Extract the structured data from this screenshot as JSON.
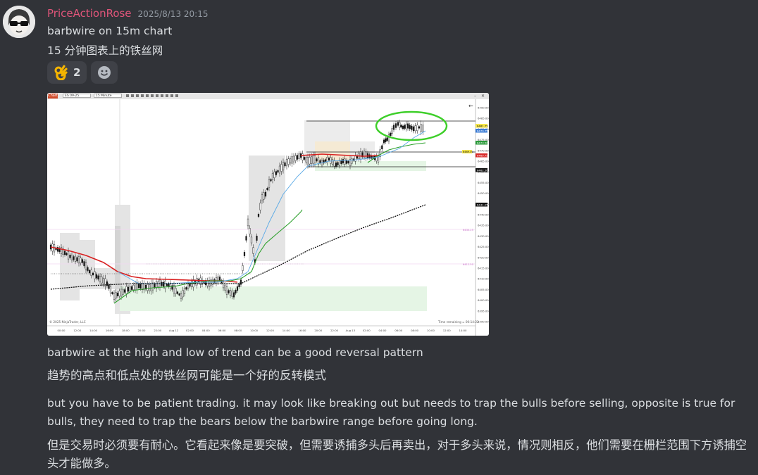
{
  "message": {
    "username": "PriceActionRose",
    "timestamp": "2025/8/13 20:15",
    "line1": "barbwire on 15m chart",
    "line2": "15 分钟图表上的铁丝网",
    "reactions": [
      {
        "emoji": "ok-hand-icon",
        "count": "2"
      }
    ],
    "after_image_1": "barbwire at the high and low of trend can be a good reversal pattern",
    "after_image_2": "趋势的高点和低点处的铁丝网可能是一个好的反转模式",
    "paragraph_en": "but you have to be patient trading. it may look like breaking out but needs to trap the bulls before selling, opposite is true for bulls, they need to trap the bears below the barbwire range before going long.",
    "paragraph_zh": "但是交易时必须要有耐心。它看起来像是要突破，但需要诱捕多头后再卖出，对于多头来说，情况则相反，他们需要在栅栏范围下方诱捕空头才能做多。"
  },
  "chart": {
    "tab_label": "Chart",
    "instrument": "ES 09-25",
    "interval": "15 Minute",
    "copyright": "© 2025 NinjaTrader, LLC",
    "time_remaining": "Time remaining = 00:14:22",
    "x_ticks": [
      "00:00",
      "12:00",
      "14:00",
      "16:00",
      "18:00",
      "20:00",
      "22:00",
      "Aug 12",
      "02:00",
      "04:00",
      "06:00",
      "08:00",
      "10:00",
      "12:00",
      "14:00",
      "16:00",
      "20:00",
      "22:00",
      "Aug 13",
      "02:00",
      "04:00",
      "06:00",
      "08:00",
      "10:00",
      "12:00",
      "14:00"
    ],
    "y_ticks": [
      "6490.00",
      "6485.00",
      "6480.00",
      "6475.00",
      "6470.00",
      "6465.00",
      "6460.00",
      "6455.00",
      "6450.00",
      "6445.00",
      "6440.00",
      "6435.00",
      "6430.00",
      "6425.00",
      "6420.00",
      "6415.00",
      "6410.00",
      "6405.00",
      "6400.00",
      "6395.00",
      "6390.00"
    ],
    "price_labels": [
      {
        "text": "6481.75",
        "color": "#f5e64a"
      },
      {
        "text": "6479.75",
        "color": "#3a7bd5"
      },
      {
        "text": "6473.50",
        "color": "#2a9a3a"
      },
      {
        "text": "6469.75",
        "color": "#d82a2a"
      },
      {
        "text": "6462.50",
        "color": "#111111"
      },
      {
        "text": "6441.25",
        "color": "#111111"
      }
    ],
    "side_labels": [
      "6430.25",
      "6412.50"
    ],
    "yellow_marker": "6469.00"
  },
  "colors": {
    "username": "#e0557a",
    "background": "#313338"
  }
}
